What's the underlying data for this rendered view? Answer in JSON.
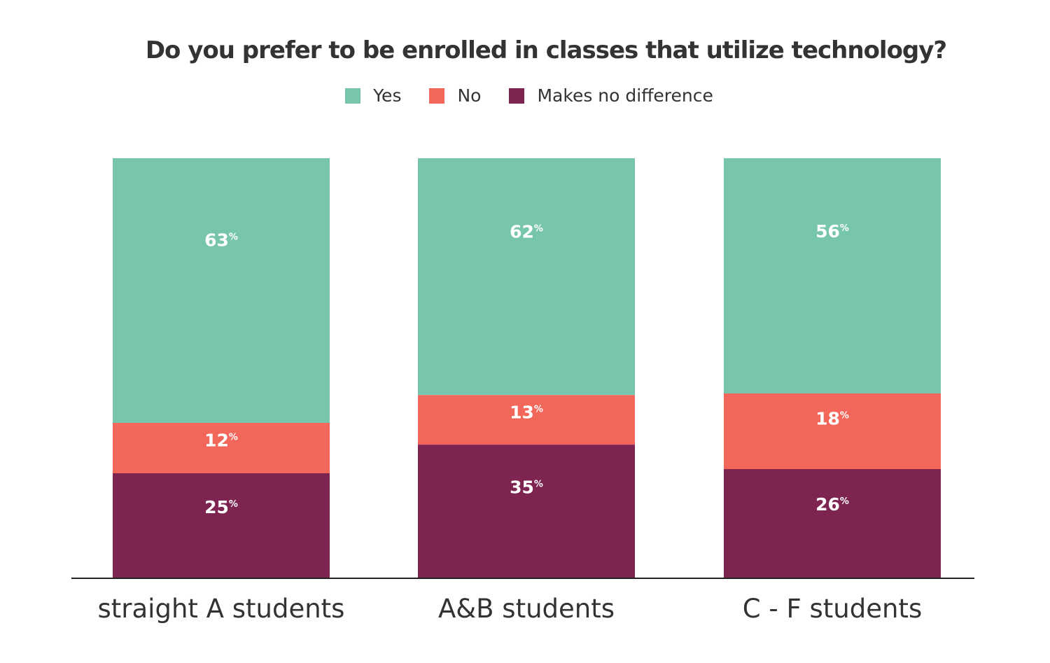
{
  "chart_data": {
    "type": "bar",
    "stacked": true,
    "title": "Do you prefer to be enrolled in classes that utilize technology?",
    "categories": [
      "straight A students",
      "A&B students",
      "C - F students"
    ],
    "series": [
      {
        "name": "Yes",
        "color": "#78c5ae",
        "values": [
          63,
          62,
          56
        ]
      },
      {
        "name": "No",
        "color": "#f2675a",
        "values": [
          12,
          13,
          18
        ]
      },
      {
        "name": "Makes no difference",
        "color": "#7e2451",
        "values": [
          25,
          35,
          26
        ]
      }
    ],
    "value_suffix": "%",
    "legend_position": "top-center",
    "grid": false
  }
}
